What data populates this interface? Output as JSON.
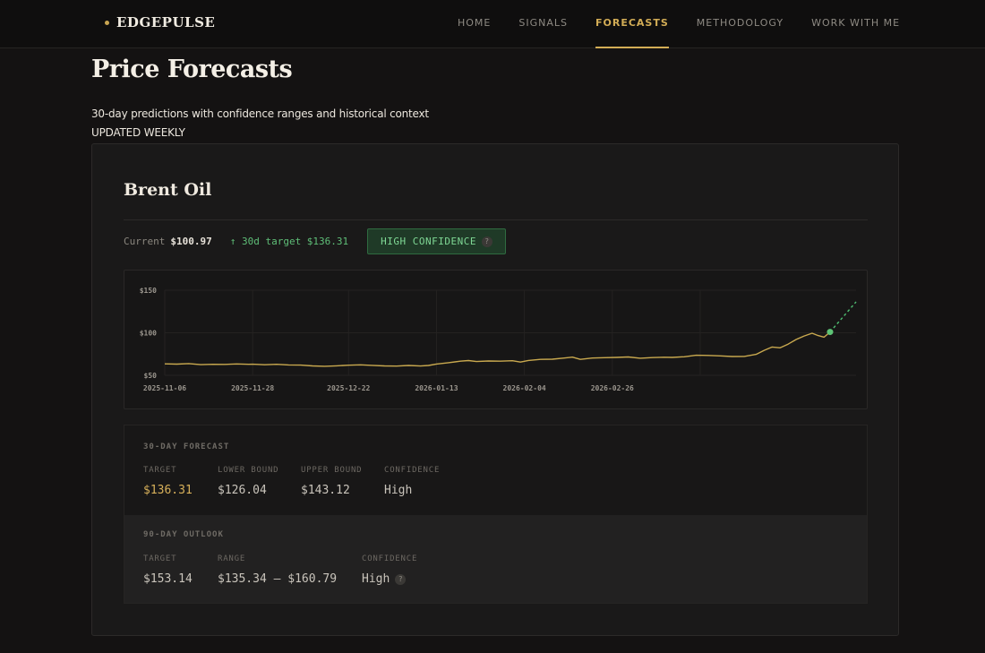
{
  "brand": {
    "name": "EDGEPULSE"
  },
  "nav": {
    "items": [
      {
        "label": "HOME"
      },
      {
        "label": "SIGNALS"
      },
      {
        "label": "FORECASTS",
        "active": true
      },
      {
        "label": "METHODOLOGY"
      },
      {
        "label": "WORK WITH ME"
      }
    ]
  },
  "header": {
    "title": "Price Forecasts",
    "subtitle": "30-day predictions with confidence ranges and historical context",
    "updated": "UPDATED WEEKLY"
  },
  "card": {
    "title": "Brent Oil",
    "current_label": "Current",
    "current_value": "$100.97",
    "target_text": "↑ 30d target $136.31",
    "confidence_badge": "HIGH CONFIDENCE",
    "help_glyph": "?"
  },
  "forecast_30": {
    "heading": "30-DAY FORECAST",
    "target_label": "TARGET",
    "target_value": "$136.31",
    "lower_label": "LOWER BOUND",
    "lower_value": "$126.04",
    "upper_label": "UPPER BOUND",
    "upper_value": "$143.12",
    "confidence_label": "CONFIDENCE",
    "confidence_value": "High"
  },
  "outlook_90": {
    "heading": "90-DAY OUTLOOK",
    "target_label": "TARGET",
    "target_value": "$153.14",
    "range_label": "RANGE",
    "range_value": "$135.34 — $160.79",
    "confidence_label": "CONFIDENCE",
    "confidence_value": "High"
  },
  "colors": {
    "accent_gold": "#d3ad56",
    "positive_green": "#5fbf78",
    "price_line": "#c9a94f",
    "forecast_dash": "#4fbf72"
  },
  "chart_data": {
    "type": "line",
    "title": "",
    "xlabel": "",
    "ylabel": "",
    "ylim": [
      50,
      150
    ],
    "y_ticks": [
      "$50",
      "$100",
      "$150"
    ],
    "x_ticks": [
      "2025-11-06",
      "2025-11-28",
      "2025-12-22",
      "2026-01-13",
      "2026-02-04",
      "2026-02-26"
    ],
    "grid": true,
    "series": [
      {
        "values": [
          [
            0,
            63.5
          ],
          [
            3,
            63.2
          ],
          [
            6,
            63.8
          ],
          [
            9,
            62.5
          ],
          [
            12,
            63.0
          ],
          [
            15,
            62.8
          ],
          [
            18,
            63.4
          ],
          [
            21,
            62.9
          ],
          [
            22,
            63.1
          ],
          [
            25,
            62.4
          ],
          [
            28,
            62.9
          ],
          [
            31,
            62.2
          ],
          [
            34,
            62.0
          ],
          [
            37,
            61.0
          ],
          [
            40,
            60.6
          ],
          [
            43,
            61.2
          ],
          [
            46,
            61.9
          ],
          [
            49,
            62.3
          ],
          [
            52,
            61.7
          ],
          [
            55,
            61.0
          ],
          [
            58,
            60.8
          ],
          [
            61,
            61.6
          ],
          [
            64,
            60.9
          ],
          [
            66,
            61.6
          ],
          [
            68,
            63.3
          ],
          [
            71,
            64.8
          ],
          [
            74,
            66.6
          ],
          [
            76,
            67.4
          ],
          [
            78,
            66.2
          ],
          [
            81,
            66.8
          ],
          [
            84,
            66.6
          ],
          [
            87,
            67.2
          ],
          [
            89,
            65.6
          ],
          [
            91,
            67.5
          ],
          [
            94,
            68.7
          ],
          [
            97,
            69.0
          ],
          [
            100,
            70.3
          ],
          [
            102,
            71.4
          ],
          [
            104,
            68.7
          ],
          [
            107,
            70.3
          ],
          [
            110,
            70.7
          ],
          [
            113,
            71.1
          ],
          [
            116,
            71.6
          ],
          [
            119,
            70.1
          ],
          [
            122,
            70.8
          ],
          [
            125,
            71.3
          ],
          [
            127,
            71.1
          ],
          [
            130,
            71.8
          ],
          [
            133,
            73.6
          ],
          [
            136,
            73.4
          ],
          [
            139,
            72.8
          ],
          [
            142,
            72.1
          ],
          [
            145,
            72.2
          ],
          [
            148,
            74.6
          ],
          [
            150,
            79.4
          ],
          [
            152,
            83.3
          ],
          [
            154,
            82.3
          ],
          [
            156,
            86.6
          ],
          [
            158,
            92.1
          ],
          [
            160,
            96.2
          ],
          [
            162,
            99.5
          ],
          [
            163.5,
            96.7
          ],
          [
            165,
            94.8
          ],
          [
            166.5,
            100.97
          ]
        ],
        "x_unit": "days since 2025-11-06"
      },
      {
        "name": "30d forecast",
        "values": [
          [
            166.5,
            100.97
          ],
          [
            173,
            136.31
          ]
        ],
        "style": "dashed"
      }
    ],
    "current_point": 100.97,
    "forecast_target": 136.31
  }
}
